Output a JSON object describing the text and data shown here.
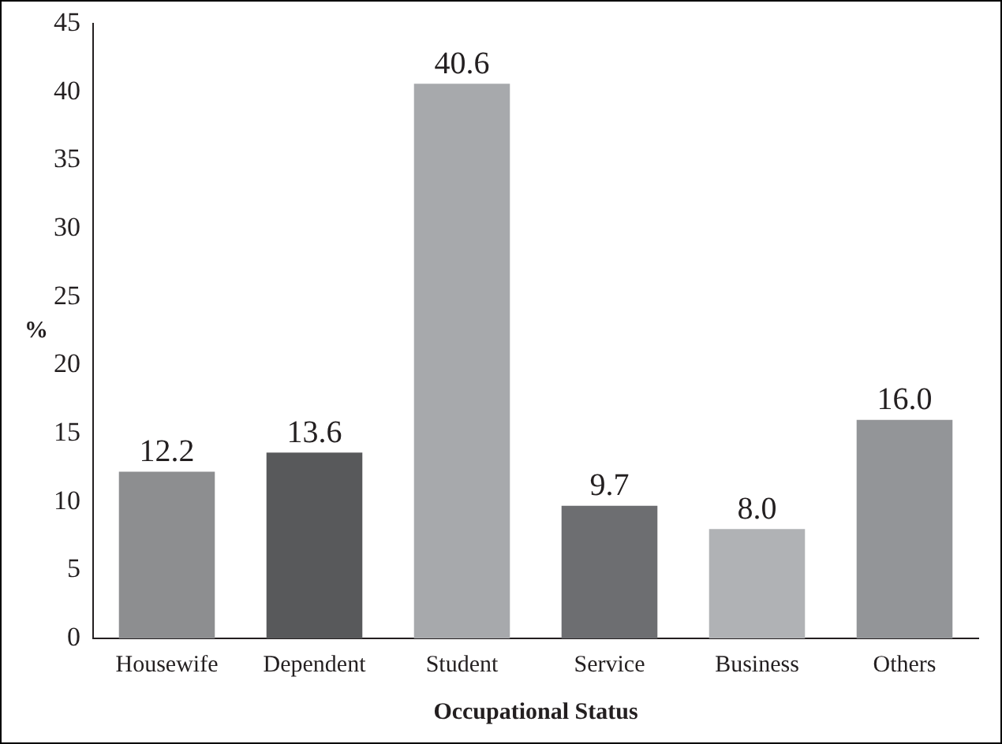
{
  "chart_data": {
    "type": "bar",
    "xlabel": "Occupational Status",
    "ylabel": "%",
    "categories": [
      "Housewife",
      "Dependent",
      "Student",
      "Service",
      "Business",
      "Others"
    ],
    "values": [
      12.2,
      13.6,
      40.6,
      9.7,
      8.0,
      16.0
    ],
    "value_labels": [
      "12.2",
      "13.6",
      "40.6",
      "9.7",
      "8.0",
      "16.0"
    ],
    "colors": [
      "#8d8e90",
      "#58595b",
      "#a7a9ac",
      "#6d6e71",
      "#b0b2b5",
      "#939598"
    ],
    "ylim": [
      0,
      45
    ],
    "yticks": [
      0,
      5,
      10,
      15,
      20,
      25,
      30,
      35,
      40,
      45
    ],
    "grid": false,
    "legend": false
  }
}
